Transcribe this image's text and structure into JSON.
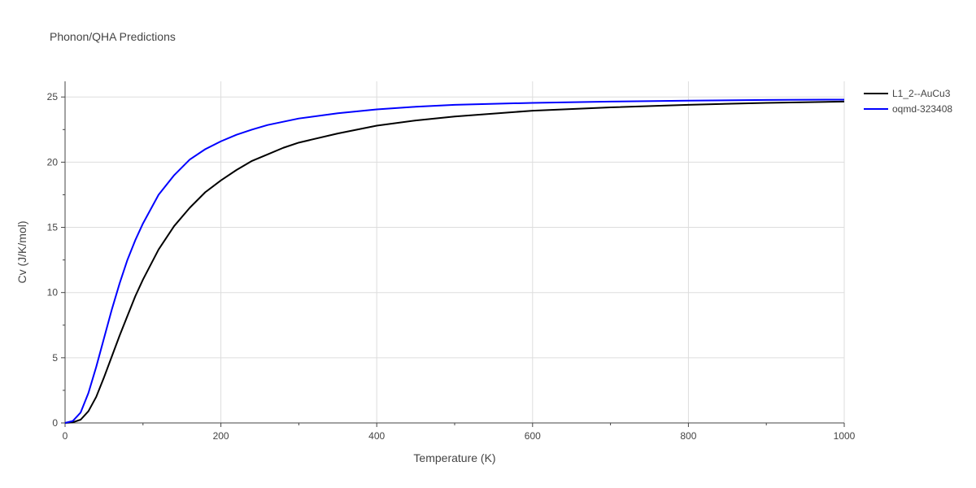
{
  "chart_data": {
    "type": "line",
    "title": "Phonon/QHA Predictions",
    "xlabel": "Temperature (K)",
    "ylabel": "Cv (J/K/mol)",
    "xlim": [
      0,
      1000
    ],
    "ylim": [
      0,
      26.2
    ],
    "xticks": [
      0,
      200,
      400,
      600,
      800,
      1000
    ],
    "yticks": [
      0,
      5,
      10,
      15,
      20,
      25
    ],
    "grid": true,
    "legend_position": "top-right",
    "series": [
      {
        "name": "L1_2--AuCu3",
        "color": "#000000",
        "x": [
          0,
          10,
          20,
          30,
          40,
          50,
          60,
          70,
          80,
          90,
          100,
          120,
          140,
          160,
          180,
          200,
          220,
          240,
          260,
          280,
          300,
          350,
          400,
          450,
          500,
          600,
          700,
          800,
          900,
          1000
        ],
        "y": [
          0,
          0.05,
          0.25,
          0.9,
          2.0,
          3.5,
          5.1,
          6.7,
          8.2,
          9.7,
          11.0,
          13.3,
          15.1,
          16.5,
          17.7,
          18.6,
          19.4,
          20.1,
          20.6,
          21.1,
          21.5,
          22.2,
          22.8,
          23.2,
          23.5,
          23.95,
          24.2,
          24.4,
          24.55,
          24.65
        ]
      },
      {
        "name": "oqmd-323408",
        "color": "#0000ff",
        "x": [
          0,
          10,
          20,
          30,
          40,
          50,
          60,
          70,
          80,
          90,
          100,
          120,
          140,
          160,
          180,
          200,
          220,
          240,
          260,
          280,
          300,
          350,
          400,
          450,
          500,
          600,
          700,
          800,
          900,
          1000
        ],
        "y": [
          0,
          0.15,
          0.8,
          2.3,
          4.3,
          6.5,
          8.7,
          10.7,
          12.5,
          14.0,
          15.3,
          17.5,
          19.0,
          20.2,
          21.0,
          21.6,
          22.1,
          22.5,
          22.85,
          23.1,
          23.35,
          23.75,
          24.05,
          24.25,
          24.4,
          24.55,
          24.65,
          24.72,
          24.77,
          24.8
        ]
      }
    ]
  }
}
